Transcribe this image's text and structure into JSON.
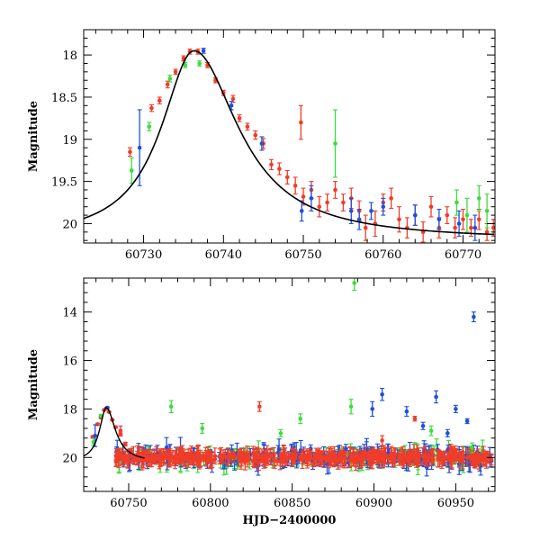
{
  "colors": {
    "red": "#f03c28",
    "green": "#3cdc3c",
    "blue": "#1e50dc",
    "curve": "#000000"
  },
  "chart_data": [
    {
      "type": "scatter",
      "panel": "top",
      "ylabel": "Magnitude",
      "xlim": [
        60722.5,
        60774
      ],
      "ylim": [
        20.23,
        17.7
      ],
      "yinverted": true,
      "xticks": [
        {
          "value": 60730,
          "label": "60730"
        },
        {
          "value": 60740,
          "label": "60740"
        },
        {
          "value": 60750,
          "label": "60750"
        },
        {
          "value": 60760,
          "label": "60760"
        },
        {
          "value": 60770,
          "label": "60770"
        }
      ],
      "yticks": [
        {
          "value": 18,
          "label": "18"
        },
        {
          "value": 18.5,
          "label": "18.5"
        },
        {
          "value": 19,
          "label": "19"
        },
        {
          "value": 19.5,
          "label": "19.5"
        },
        {
          "value": 20,
          "label": "20"
        }
      ],
      "model_curve": {
        "peak_x": 60736.3,
        "peak_mag": 17.95,
        "base_mag": 20.2,
        "rise_width": 5,
        "decay_width": 6.8
      },
      "series": [
        {
          "name": "red",
          "points": [
            [
              60728.3,
              19.15,
              0.05
            ],
            [
              60731.0,
              18.63,
              0.04
            ],
            [
              60732.0,
              18.54,
              0.04
            ],
            [
              60733.0,
              18.35,
              0.04
            ],
            [
              60734.0,
              18.2,
              0.03
            ],
            [
              60735.0,
              18.04,
              0.03
            ],
            [
              60735.8,
              17.96,
              0.03
            ],
            [
              60736.8,
              17.96,
              0.03
            ],
            [
              60738.0,
              18.12,
              0.03
            ],
            [
              60739.0,
              18.3,
              0.03
            ],
            [
              60740.0,
              18.45,
              0.03
            ],
            [
              60741.2,
              18.52,
              0.04
            ],
            [
              60742.0,
              18.75,
              0.04
            ],
            [
              60743.0,
              18.85,
              0.04
            ],
            [
              60744.0,
              18.95,
              0.05
            ],
            [
              60745.0,
              19.05,
              0.06
            ],
            [
              60746.0,
              19.3,
              0.06
            ],
            [
              60747.0,
              19.35,
              0.07
            ],
            [
              60748.0,
              19.45,
              0.08
            ],
            [
              60749.0,
              19.55,
              0.1
            ],
            [
              60749.7,
              18.8,
              0.2
            ],
            [
              60750.0,
              19.68,
              0.1
            ],
            [
              60751.0,
              19.6,
              0.1
            ],
            [
              60752.0,
              19.8,
              0.12
            ],
            [
              60753.0,
              19.75,
              0.1
            ],
            [
              60754.0,
              19.6,
              0.1
            ],
            [
              60755.0,
              19.75,
              0.1
            ],
            [
              60756.0,
              19.7,
              0.12
            ],
            [
              60757.0,
              19.85,
              0.12
            ],
            [
              60757.8,
              20.05,
              0.15
            ],
            [
              60759.0,
              20.0,
              0.15
            ],
            [
              60760.0,
              19.75,
              0.1
            ],
            [
              60761.0,
              19.7,
              0.12
            ],
            [
              60762.0,
              19.95,
              0.15
            ],
            [
              60763.0,
              20.05,
              0.12
            ],
            [
              60764.0,
              19.9,
              0.12
            ],
            [
              60765.0,
              20.1,
              0.12
            ],
            [
              60766.0,
              19.8,
              0.12
            ],
            [
              60767.0,
              20.05,
              0.12
            ],
            [
              60768.0,
              19.9,
              0.1
            ],
            [
              60769.0,
              20.05,
              0.12
            ],
            [
              60770.0,
              19.95,
              0.12
            ],
            [
              60771.0,
              20.05,
              0.1
            ],
            [
              60772.0,
              19.95,
              0.12
            ],
            [
              60773.0,
              20.1,
              0.1
            ],
            [
              60773.8,
              20.05,
              0.1
            ]
          ]
        },
        {
          "name": "green",
          "points": [
            [
              60728.5,
              19.37,
              0.15
            ],
            [
              60730.7,
              18.85,
              0.05
            ],
            [
              60733.3,
              18.28,
              0.04
            ],
            [
              60735.2,
              18.12,
              0.03
            ],
            [
              60737.0,
              18.1,
              0.03
            ],
            [
              60754.0,
              19.05,
              0.4
            ],
            [
              60769.2,
              19.75,
              0.15
            ],
            [
              60770.5,
              19.9,
              0.2
            ],
            [
              60772.0,
              19.7,
              0.15
            ],
            [
              60773.0,
              19.85,
              0.2
            ]
          ]
        },
        {
          "name": "blue",
          "points": [
            [
              60729.5,
              19.1,
              0.45
            ],
            [
              60737.5,
              17.95,
              0.03
            ],
            [
              60741.0,
              18.6,
              0.05
            ],
            [
              60744.8,
              19.05,
              0.08
            ],
            [
              60749.8,
              19.85,
              0.12
            ],
            [
              60751.0,
              19.7,
              0.15
            ],
            [
              60756.0,
              19.85,
              0.15
            ],
            [
              60757.0,
              19.95,
              0.12
            ],
            [
              60758.5,
              19.85,
              0.1
            ],
            [
              60760.0,
              19.8,
              0.1
            ],
            [
              60764.0,
              19.9,
              0.12
            ],
            [
              60767.0,
              19.95,
              0.12
            ],
            [
              60769.5,
              20.0,
              0.15
            ],
            [
              60771.5,
              20.05,
              0.15
            ]
          ]
        }
      ]
    },
    {
      "type": "scatter",
      "panel": "bottom",
      "ylabel": "Magnitude",
      "xlabel": "HJD−2400000",
      "xlim": [
        60722.5,
        60974
      ],
      "ylim": [
        21.4,
        12.6
      ],
      "yinverted": true,
      "xticks": [
        {
          "value": 60750,
          "label": "60750"
        },
        {
          "value": 60800,
          "label": "60800"
        },
        {
          "value": 60850,
          "label": "60850"
        },
        {
          "value": 60900,
          "label": "60900"
        },
        {
          "value": 60950,
          "label": "60950"
        }
      ],
      "yticks": [
        {
          "value": 14,
          "label": "14"
        },
        {
          "value": 16,
          "label": "16"
        },
        {
          "value": 18,
          "label": "18"
        },
        {
          "value": 20,
          "label": "20"
        }
      ],
      "scatter_generation": {
        "x_start": 60742,
        "x_end": 60972,
        "center_mag": 20.0,
        "note": "dense band of points around magnitude 20"
      },
      "series": [
        {
          "name": "red",
          "points": [
            [
              60728,
              19.15,
              0.05
            ],
            [
              60731,
              18.63,
              0.04
            ],
            [
              60733,
              18.35,
              0.04
            ],
            [
              60735,
              18.04,
              0.03
            ],
            [
              60736.5,
              17.96,
              0.03
            ],
            [
              60738,
              18.12,
              0.03
            ],
            [
              60740,
              18.45,
              0.03
            ],
            [
              60742,
              18.75,
              0.04
            ],
            [
              60745,
              19.05,
              0.06
            ],
            [
              60748,
              19.45,
              0.08
            ],
            [
              60745,
              18.9,
              0.2
            ],
            [
              60830,
              17.9,
              0.2
            ],
            [
              60925,
              18.4,
              0.1
            ],
            [
              60947,
              19.6,
              0.15
            ],
            [
              60905,
              19.3,
              0.2
            ]
          ]
        },
        {
          "name": "green",
          "points": [
            [
              60728.5,
              19.37,
              0.15
            ],
            [
              60733,
              18.28,
              0.04
            ],
            [
              60776,
              17.9,
              0.25
            ],
            [
              60888,
              12.8,
              0.3
            ],
            [
              60886,
              17.9,
              0.3
            ],
            [
              60855,
              18.4,
              0.2
            ],
            [
              60843,
              19.0,
              0.15
            ],
            [
              60795,
              18.8,
              0.2
            ],
            [
              60935,
              18.9,
              0.2
            ],
            [
              60960,
              19.6,
              0.2
            ]
          ]
        },
        {
          "name": "blue",
          "points": [
            [
              60729.5,
              19.1,
              0.45
            ],
            [
              60737,
              17.95,
              0.03
            ],
            [
              60961,
              14.2,
              0.2
            ],
            [
              60899,
              18.0,
              0.3
            ],
            [
              60905,
              17.4,
              0.25
            ],
            [
              60920,
              18.1,
              0.2
            ],
            [
              60938,
              17.5,
              0.25
            ],
            [
              60950,
              18.0,
              0.15
            ],
            [
              60957,
              18.5,
              0.1
            ],
            [
              60930,
              18.7,
              0.15
            ],
            [
              60945,
              19.0,
              0.15
            ]
          ]
        }
      ]
    }
  ]
}
